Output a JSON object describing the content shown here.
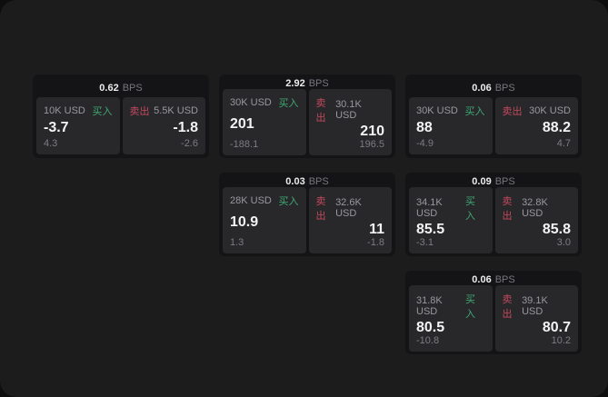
{
  "labels": {
    "bps_unit": "BPS",
    "buy": "买入",
    "sell": "卖出"
  },
  "colors": {
    "buy_green": "#3fa873",
    "sell_red": "#c2495c",
    "panel_bg": "#1c1c1d",
    "card_bg": "#141416",
    "tile_bg": "#28282b"
  },
  "cards": [
    {
      "bps": "0.62",
      "buy_amount": "10K USD",
      "buy_price": "-3.7",
      "buy_delta": "4.3",
      "sell_amount": "5.5K USD",
      "sell_price": "-1.8",
      "sell_delta": "-2.6"
    },
    {
      "bps": "2.92",
      "buy_amount": "30K USD",
      "buy_price": "201",
      "buy_delta": "-188.1",
      "sell_amount": "30.1K USD",
      "sell_price": "210",
      "sell_delta": "196.5"
    },
    {
      "bps": "0.06",
      "buy_amount": "30K USD",
      "buy_price": "88",
      "buy_delta": "-4.9",
      "sell_amount": "30K USD",
      "sell_price": "88.2",
      "sell_delta": "4.7"
    },
    {
      "bps": "0.03",
      "buy_amount": "28K USD",
      "buy_price": "10.9",
      "buy_delta": "1.3",
      "sell_amount": "32.6K USD",
      "sell_price": "11",
      "sell_delta": "-1.8"
    },
    {
      "bps": "0.09",
      "buy_amount": "34.1K USD",
      "buy_price": "85.5",
      "buy_delta": "-3.1",
      "sell_amount": "32.8K USD",
      "sell_price": "85.8",
      "sell_delta": "3.0"
    },
    {
      "bps": "0.06",
      "buy_amount": "31.8K USD",
      "buy_price": "80.5",
      "buy_delta": "-10.8",
      "sell_amount": "39.1K USD",
      "sell_price": "80.7",
      "sell_delta": "10.2"
    }
  ]
}
